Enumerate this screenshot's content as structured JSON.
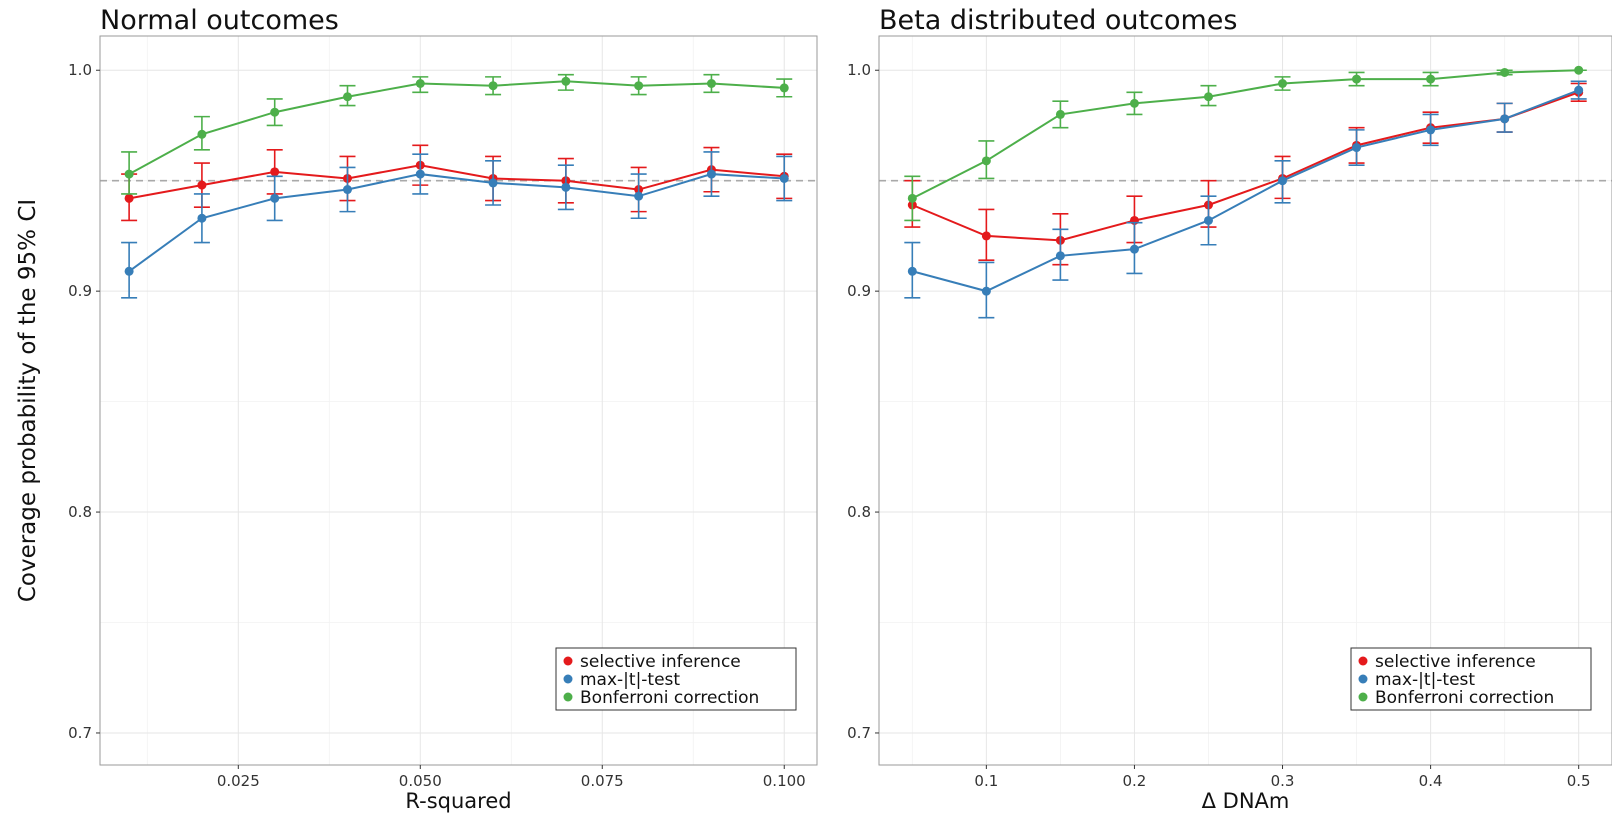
{
  "chart_data": [
    {
      "type": "line",
      "title": "Normal outcomes",
      "xlabel": "R-squared",
      "ylabel": "Coverage probability of the 95% CI",
      "xlim": [
        0.006,
        0.1045
      ],
      "ylim": [
        0.6855,
        1.0155
      ],
      "xticks": [
        0.025,
        0.05,
        0.075,
        0.1
      ],
      "xtick_labels": [
        "0.025",
        "0.050",
        "0.075",
        "0.100"
      ],
      "yticks": [
        0.7,
        0.8,
        0.9,
        1.0
      ],
      "ytick_labels": [
        "0.7",
        "0.8",
        "0.9",
        "1.0"
      ],
      "reference_line": 0.95,
      "grid": true,
      "legend_position": "bottom-right",
      "x": [
        0.01,
        0.02,
        0.03,
        0.04,
        0.05,
        0.06,
        0.07,
        0.08,
        0.09,
        0.1
      ],
      "series": [
        {
          "name": "selective inference",
          "color": "#e41a1c",
          "values": [
            0.942,
            0.948,
            0.954,
            0.951,
            0.957,
            0.951,
            0.95,
            0.946,
            0.955,
            0.952
          ],
          "lower": [
            0.932,
            0.938,
            0.944,
            0.941,
            0.948,
            0.941,
            0.94,
            0.936,
            0.945,
            0.942
          ],
          "upper": [
            0.953,
            0.958,
            0.964,
            0.961,
            0.966,
            0.961,
            0.96,
            0.956,
            0.965,
            0.962
          ]
        },
        {
          "name": "max-|t|-test",
          "color": "#377eb8",
          "values": [
            0.909,
            0.933,
            0.942,
            0.946,
            0.953,
            0.949,
            0.947,
            0.943,
            0.953,
            0.951
          ],
          "lower": [
            0.897,
            0.922,
            0.932,
            0.936,
            0.944,
            0.939,
            0.937,
            0.933,
            0.943,
            0.941
          ],
          "upper": [
            0.922,
            0.944,
            0.952,
            0.956,
            0.962,
            0.959,
            0.957,
            0.953,
            0.963,
            0.961
          ]
        },
        {
          "name": "Bonferroni correction",
          "color": "#4daf4a",
          "values": [
            0.953,
            0.971,
            0.981,
            0.988,
            0.994,
            0.993,
            0.995,
            0.993,
            0.994,
            0.992
          ],
          "lower": [
            0.944,
            0.964,
            0.975,
            0.984,
            0.99,
            0.989,
            0.991,
            0.989,
            0.99,
            0.988
          ],
          "upper": [
            0.963,
            0.979,
            0.987,
            0.993,
            0.997,
            0.997,
            0.998,
            0.997,
            0.998,
            0.996
          ]
        }
      ]
    },
    {
      "type": "line",
      "title": "Beta distributed outcomes",
      "xlabel": "Δ DNAm",
      "ylabel": "",
      "xlim": [
        0.0275,
        0.5225
      ],
      "ylim": [
        0.6855,
        1.0155
      ],
      "xticks": [
        0.1,
        0.2,
        0.3,
        0.4,
        0.5
      ],
      "xtick_labels": [
        "0.1",
        "0.2",
        "0.3",
        "0.4",
        "0.5"
      ],
      "yticks": [
        0.7,
        0.8,
        0.9,
        1.0
      ],
      "ytick_labels": [
        "0.7",
        "0.8",
        "0.9",
        "1.0"
      ],
      "reference_line": 0.95,
      "grid": true,
      "legend_position": "bottom-right",
      "x": [
        0.05,
        0.1,
        0.15,
        0.2,
        0.25,
        0.3,
        0.35,
        0.4,
        0.45,
        0.5
      ],
      "series": [
        {
          "name": "selective inference",
          "color": "#e41a1c",
          "values": [
            0.939,
            0.925,
            0.923,
            0.932,
            0.939,
            0.951,
            0.966,
            0.974,
            0.978,
            0.99
          ],
          "lower": [
            0.929,
            0.914,
            0.912,
            0.922,
            0.929,
            0.942,
            0.958,
            0.967,
            0.972,
            0.986
          ],
          "upper": [
            0.95,
            0.937,
            0.935,
            0.943,
            0.95,
            0.961,
            0.974,
            0.981,
            0.985,
            0.994
          ]
        },
        {
          "name": "max-|t|-test",
          "color": "#377eb8",
          "values": [
            0.909,
            0.9,
            0.916,
            0.919,
            0.932,
            0.95,
            0.965,
            0.973,
            0.978,
            0.991
          ],
          "lower": [
            0.897,
            0.888,
            0.905,
            0.908,
            0.921,
            0.94,
            0.957,
            0.966,
            0.972,
            0.987
          ],
          "upper": [
            0.922,
            0.913,
            0.928,
            0.931,
            0.943,
            0.959,
            0.973,
            0.98,
            0.985,
            0.995
          ]
        },
        {
          "name": "Bonferroni correction",
          "color": "#4daf4a",
          "values": [
            0.942,
            0.959,
            0.98,
            0.985,
            0.988,
            0.994,
            0.996,
            0.996,
            0.999,
            1.0
          ],
          "lower": [
            0.932,
            0.951,
            0.974,
            0.98,
            0.984,
            0.991,
            0.993,
            0.993,
            0.998,
            1.0
          ],
          "upper": [
            0.952,
            0.968,
            0.986,
            0.99,
            0.993,
            0.997,
            0.999,
            0.999,
            1.0,
            1.0
          ]
        }
      ]
    }
  ]
}
